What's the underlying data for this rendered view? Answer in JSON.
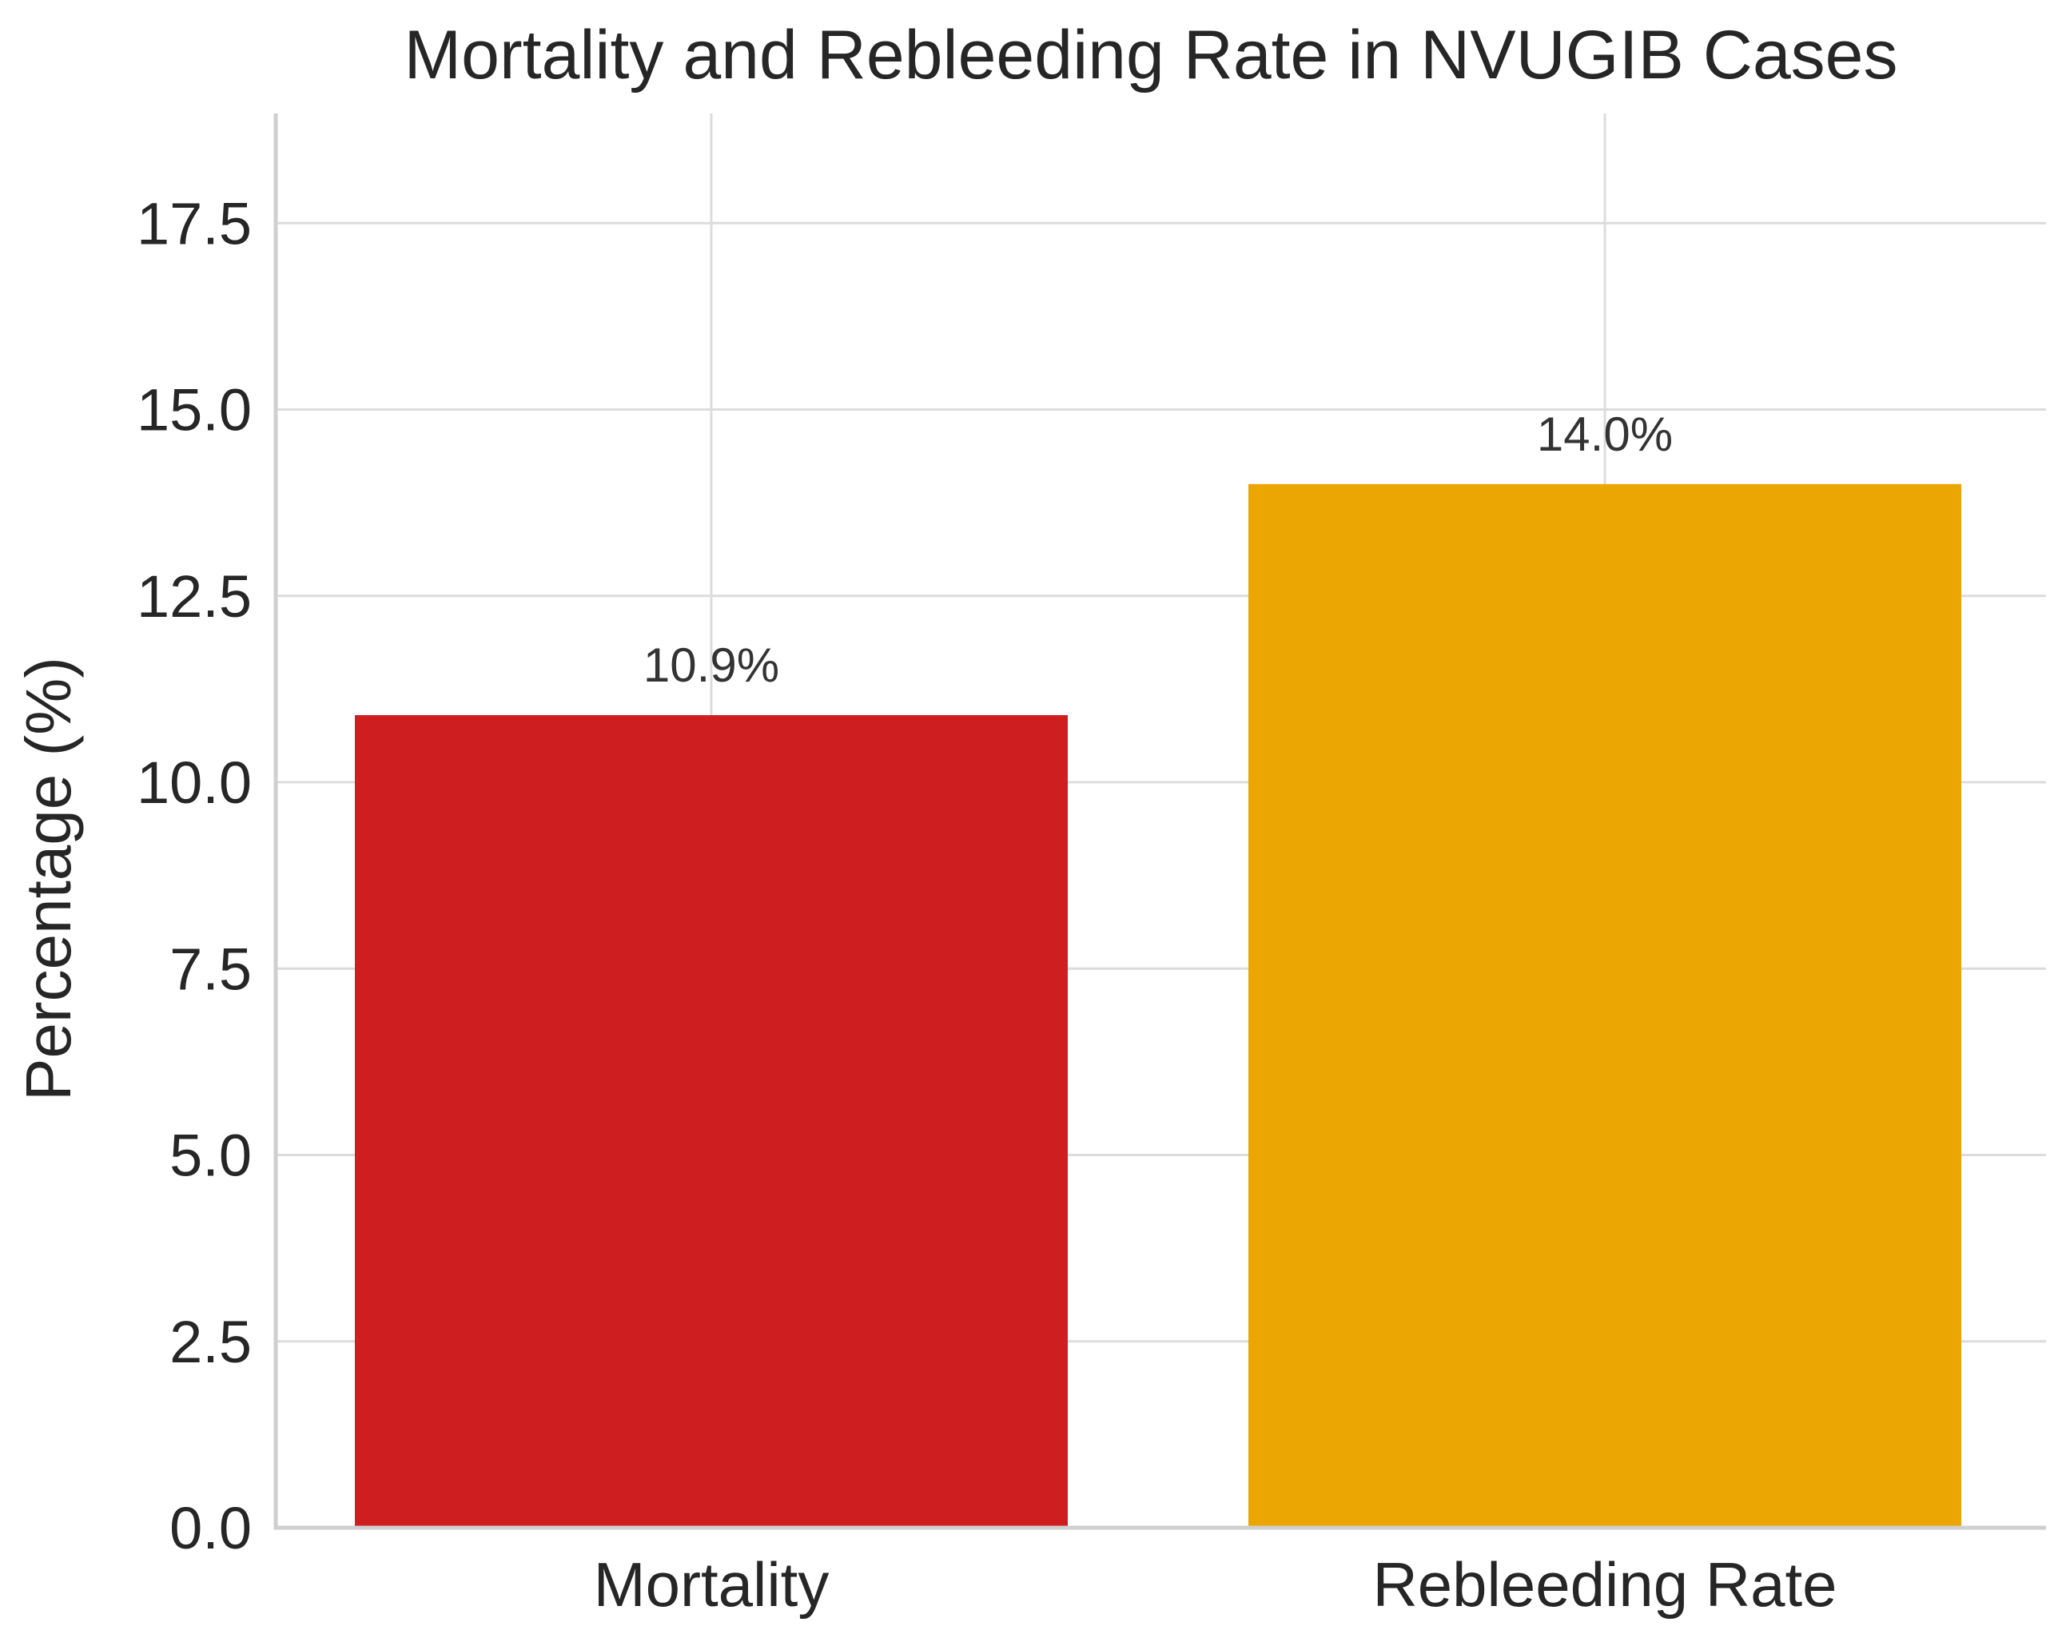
{
  "chart_data": {
    "type": "bar",
    "title": "Mortality and Rebleeding Rate in NVUGIB Cases",
    "xlabel": "",
    "ylabel": "Percentage (%)",
    "categories": [
      "Mortality",
      "Rebleeding Rate"
    ],
    "values": [
      10.9,
      14.0
    ],
    "data_labels": [
      "10.9%",
      "14.0%"
    ],
    "colors": [
      "#cf1e1f",
      "#eba603"
    ],
    "ylim": [
      0,
      19
    ],
    "yticks": [
      0.0,
      2.5,
      5.0,
      7.5,
      10.0,
      12.5,
      15.0,
      17.5
    ],
    "ytick_labels": [
      "0.0",
      "2.5",
      "5.0",
      "7.5",
      "10.0",
      "12.5",
      "15.0",
      "17.5"
    ],
    "grid": true,
    "legend": "none"
  }
}
